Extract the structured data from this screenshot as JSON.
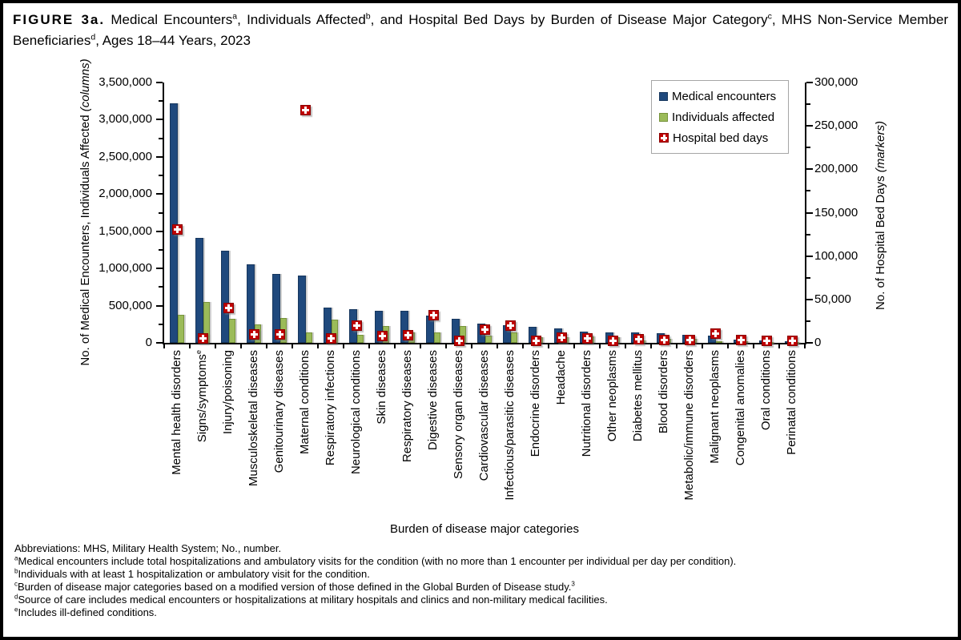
{
  "figure": {
    "title_label": "FIGURE 3a.",
    "title_text": "Medical Encounters^{a}, Individuals Affected^{b}, and Hospital Bed Days by Burden of Disease Major Category^{c}, MHS Non-Service Member Beneficiaries^{d}, Ages 18–44 Years, 2023"
  },
  "chart_data": {
    "type": "bar",
    "subtype": "dual-axis columns with scatter markers",
    "categories": [
      "Mental health disorders",
      "Signs/symptoms^{e}",
      "Injury/poisoning",
      "Musculoskeletal diseases",
      "Genitourinary diseases",
      "Maternal conditions",
      "Respiratory infections",
      "Neurological conditions",
      "Skin diseases",
      "Respiratory diseases",
      "Digestive diseases",
      "Sensory organ diseases",
      "Cardiovascular diseases",
      "Infectious/parasitic diseases",
      "Endocrine disorders",
      "Headache",
      "Nutritional disorders",
      "Other neoplasms",
      "Diabetes mellitus",
      "Blood disorders",
      "Metabolic/immune disorders",
      "Malignant neoplasms",
      "Congenital anomalies",
      "Oral conditions",
      "Perinatal conditions"
    ],
    "series": [
      {
        "name": "Medical encounters",
        "type": "column",
        "axis": "left",
        "color": "#1F497D",
        "values": [
          3220000,
          1410000,
          1240000,
          1060000,
          925000,
          900000,
          470000,
          450000,
          435000,
          430000,
          370000,
          325000,
          255000,
          235000,
          215000,
          190000,
          155000,
          136000,
          135000,
          125000,
          107000,
          100000,
          43000,
          29000,
          18000
        ]
      },
      {
        "name": "Individuals affected",
        "type": "column",
        "axis": "left",
        "color": "#9BBB59",
        "values": [
          380000,
          550000,
          325000,
          250000,
          335000,
          135000,
          310000,
          110000,
          225000,
          135000,
          145000,
          230000,
          95000,
          145000,
          80000,
          80000,
          90000,
          80000,
          35000,
          55000,
          55000,
          20000,
          18000,
          11000,
          8000
        ]
      },
      {
        "name": "Hospital bed days",
        "type": "marker",
        "axis": "right",
        "color": "#C00000",
        "values": [
          130000,
          5000,
          40000,
          9000,
          9000,
          268000,
          5000,
          19000,
          7000,
          8000,
          31000,
          1500,
          15000,
          19000,
          2000,
          5500,
          5000,
          2000,
          3500,
          3000,
          2500,
          10000,
          2500,
          1500,
          1500
        ]
      }
    ],
    "left_axis": {
      "label_main": "No. of Medical Encounters, Individuals Affected ",
      "label_paren": "(columns)",
      "min": 0,
      "max": 3500000,
      "major": 500000,
      "minor": 250000
    },
    "right_axis": {
      "label_main": "No. of Hospital Bed Days ",
      "label_paren": "(markers)",
      "min": 0,
      "max": 300000,
      "major": 50000,
      "minor": 25000
    },
    "xlabel": "Burden of disease major categories",
    "legend_position": "top-right",
    "grid": false
  },
  "footnotes": [
    "Abbreviations: MHS, Military Health System; No., number.",
    "^{a}Medical encounters include total hospitalizations and ambulatory visits for the condition (with no more than 1 encounter per individual per day per condition).",
    "^{b}Individuals with at least 1 hospitalization or ambulatory visit for the condition.",
    "^{c}Burden of disease major categories based on a modified version of those defined in the Global Burden of Disease study.^{3}",
    "^{d}Source of care includes medical encounters or hospitalizations at military hospitals and clinics and non-military medical facilities.",
    "^{e}Includes ill-defined conditions."
  ]
}
